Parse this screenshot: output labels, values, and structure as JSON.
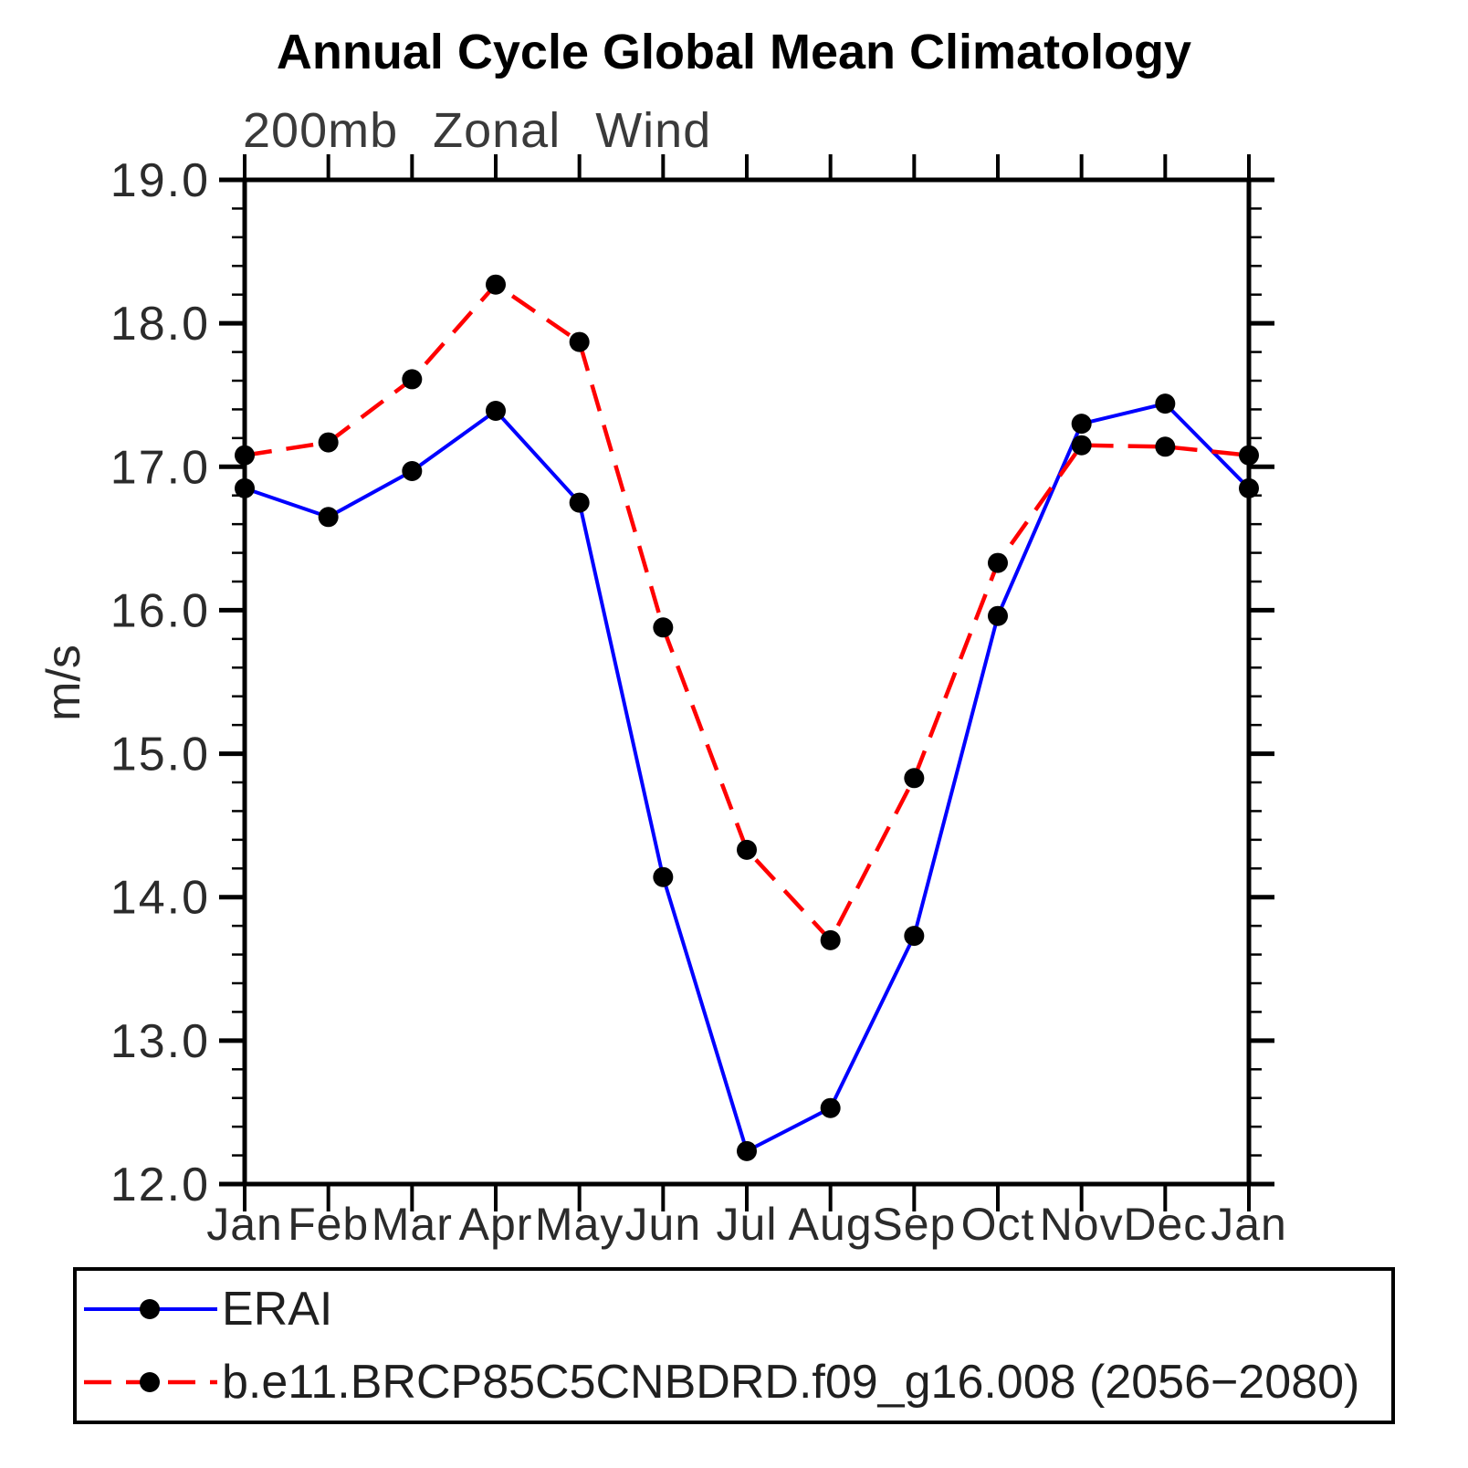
{
  "chart_data": {
    "type": "line",
    "title": "Annual Cycle Global Mean Climatology",
    "subtitle": "200mb Zonal Wind",
    "ylabel": "m/s",
    "categories": [
      "Jan",
      "Feb",
      "Mar",
      "Apr",
      "May",
      "Jun",
      "Jul",
      "Aug",
      "Sep",
      "Oct",
      "Nov",
      "Dec",
      "Jan"
    ],
    "ylim": [
      12.0,
      19.0
    ],
    "y_minor_step": 0.2,
    "y_major_ticks": [
      19.0,
      18.0,
      17.0,
      16.0,
      15.0,
      14.0,
      13.0,
      12.0
    ],
    "y_major_tick_labels": [
      "19.0",
      "18.0",
      "17.0",
      "16.0",
      "15.0",
      "14.0",
      "13.0",
      "12.0"
    ],
    "grid": false,
    "legend_position": "bottom",
    "series": [
      {
        "name": "ERAI",
        "color": "#0000ff",
        "line_style": "solid",
        "marker": "filled-circle",
        "marker_color": "#000000",
        "values": [
          16.85,
          16.65,
          16.97,
          17.39,
          16.75,
          14.14,
          12.23,
          12.53,
          13.73,
          15.96,
          17.3,
          17.44,
          16.85
        ]
      },
      {
        "name": "b.e11.BRCP85C5CNBDRD.f09_g16.008 (2056−2080)",
        "color": "#ff0000",
        "line_style": "dashed",
        "marker": "filled-circle",
        "marker_color": "#000000",
        "values": [
          17.08,
          17.17,
          17.61,
          18.27,
          17.87,
          15.88,
          14.33,
          13.7,
          14.83,
          16.33,
          17.15,
          17.14,
          17.08
        ]
      }
    ]
  },
  "colors": {
    "axis": "#000000",
    "background": "#ffffff",
    "erai_blue": "#0000ff",
    "model_red": "#ff0000",
    "marker_black": "#000000"
  }
}
